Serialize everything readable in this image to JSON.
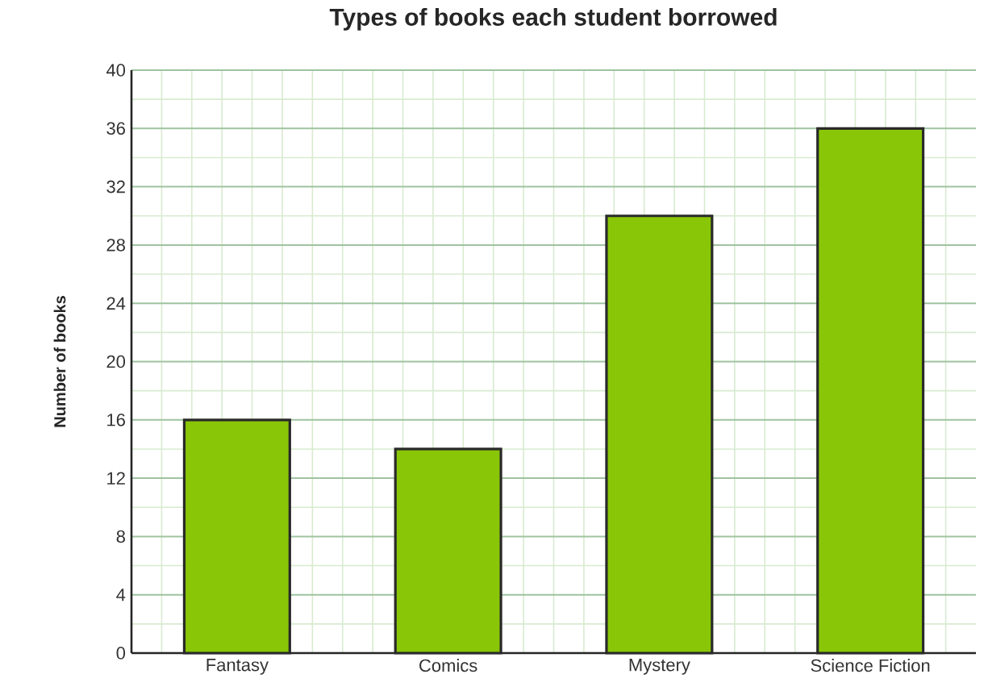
{
  "chart_data": {
    "type": "bar",
    "title": "Types of books each student borrowed",
    "ylabel": "Number of books",
    "categories": [
      "Fantasy",
      "Comics",
      "Mystery",
      "Science Fiction"
    ],
    "values": [
      16,
      14,
      30,
      36
    ],
    "color": "#8ac608",
    "ylim": [
      0,
      40
    ],
    "yticks": [
      0,
      4,
      8,
      12,
      16,
      20,
      24,
      28,
      32,
      36,
      40
    ],
    "grid": true
  }
}
